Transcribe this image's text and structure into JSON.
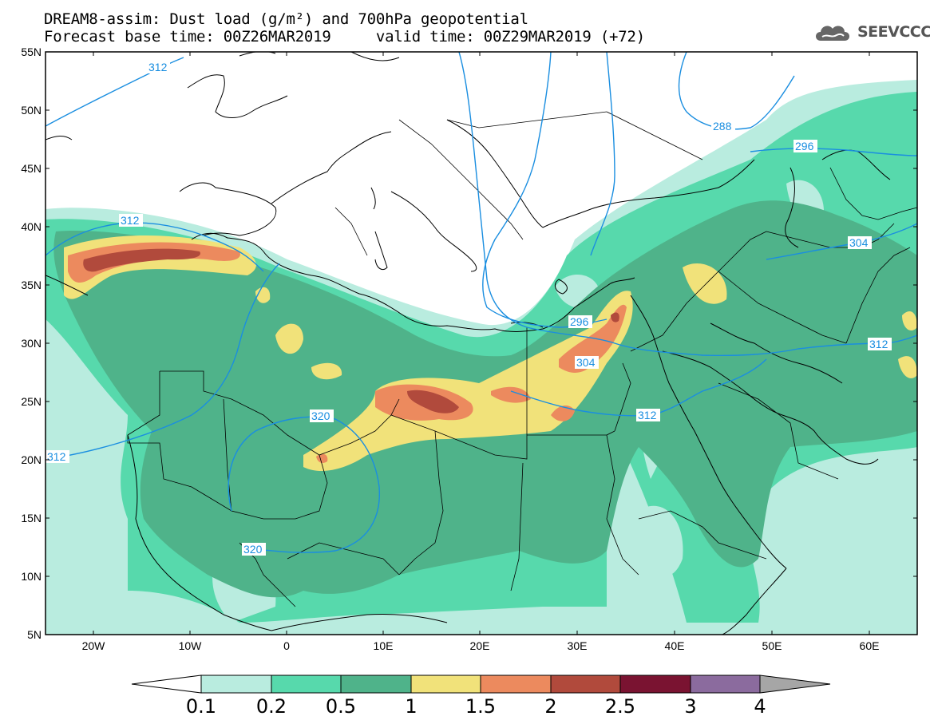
{
  "header": {
    "title_line1": "DREAM8-assim: Dust load (g/m²) and 700hPa geopotential",
    "title_line2": "Forecast base time: 00Z26MAR2019     valid time: 00Z29MAR2019 (+72)",
    "logo_text": "SEEVCCC"
  },
  "axes": {
    "lat_labels": [
      "55N",
      "50N",
      "45N",
      "40N",
      "35N",
      "30N",
      "25N",
      "20N",
      "15N",
      "10N",
      "5N"
    ],
    "lon_labels": [
      "20W",
      "10W",
      "0",
      "10E",
      "20E",
      "30E",
      "40E",
      "50E",
      "60E"
    ]
  },
  "contour_labels": [
    "312",
    "288",
    "296",
    "304",
    "312",
    "312",
    "320",
    "312",
    "296",
    "304",
    "312",
    "320"
  ],
  "colorbar": {
    "labels": [
      "0.1",
      "0.2",
      "0.5",
      "1",
      "1.5",
      "2",
      "2.5",
      "3",
      "4"
    ],
    "colors": [
      "#ffffff",
      "#b9ecdf",
      "#57d9ac",
      "#4fb38a",
      "#f1e27a",
      "#ec8a5e",
      "#b14a3c",
      "#7a1331",
      "#8b6b9e",
      "#a6a6a6"
    ]
  },
  "palette": {
    "c1": "#b9ecdf",
    "c2": "#57d9ac",
    "c3": "#4fb38a",
    "c4": "#f1e27a",
    "c5": "#ec8a5e",
    "c6": "#b14a3c",
    "contour": "#1a8ee0",
    "coast": "#000000"
  }
}
